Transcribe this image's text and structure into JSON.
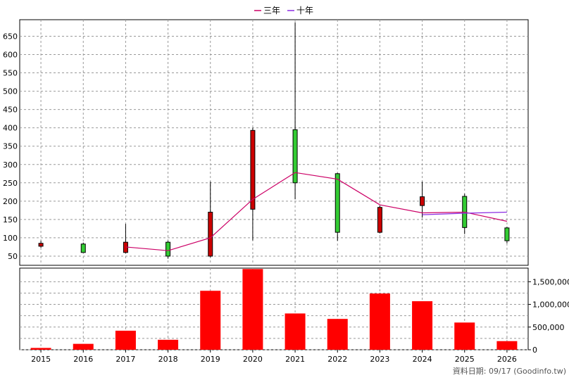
{
  "footer": {
    "source_text": "資料日期: 09/17  (Goodinfo.tw)"
  },
  "chart_data": {
    "type": "candlestick-with-bar",
    "legend": [
      {
        "label": "三年",
        "color": "#cc0066"
      },
      {
        "label": "十年",
        "color": "#8a2be2"
      }
    ],
    "categories": [
      "2015",
      "2016",
      "2017",
      "2018",
      "2019",
      "2020",
      "2021",
      "2022",
      "2023",
      "2024",
      "2025",
      "2026"
    ],
    "price": {
      "ylim": [
        25,
        695
      ],
      "yticks": [
        50,
        100,
        150,
        200,
        250,
        300,
        350,
        400,
        450,
        500,
        550,
        600,
        650
      ],
      "candles": [
        {
          "year": "2015",
          "open": 77,
          "high": 92,
          "low": 73,
          "close": 85,
          "color": "#cc0000"
        },
        {
          "year": "2016",
          "open": 83,
          "high": 87,
          "low": 62,
          "close": 60,
          "color": "#33cc33"
        },
        {
          "year": "2017",
          "open": 60,
          "high": 138,
          "low": 58,
          "close": 88,
          "color": "#cc0000"
        },
        {
          "year": "2018",
          "open": 88,
          "high": 92,
          "low": 43,
          "close": 50,
          "color": "#33cc33"
        },
        {
          "year": "2019",
          "open": 50,
          "high": 253,
          "low": 47,
          "close": 170,
          "color": "#cc0000"
        },
        {
          "year": "2020",
          "open": 178,
          "high": 400,
          "low": 93,
          "close": 393,
          "color": "#cc0000"
        },
        {
          "year": "2021",
          "open": 395,
          "high": 688,
          "low": 205,
          "close": 250,
          "color": "#33cc33"
        },
        {
          "year": "2022",
          "open": 275,
          "high": 277,
          "low": 92,
          "close": 115,
          "color": "#33cc33"
        },
        {
          "year": "2023",
          "open": 115,
          "high": 188,
          "low": 112,
          "close": 183,
          "color": "#cc0000"
        },
        {
          "year": "2024",
          "open": 188,
          "high": 253,
          "low": 155,
          "close": 212,
          "color": "#cc0000"
        },
        {
          "year": "2025",
          "open": 213,
          "high": 220,
          "low": 110,
          "close": 128,
          "color": "#33cc33"
        },
        {
          "year": "2026",
          "open": 127,
          "high": 130,
          "low": 85,
          "close": 92,
          "color": "#33cc33"
        }
      ],
      "series": [
        {
          "name": "三年",
          "color": "#cc0066",
          "points": [
            [
              "2017",
              75
            ],
            [
              "2018",
              65
            ],
            [
              "2019",
              100
            ],
            [
              "2020",
              205
            ],
            [
              "2021",
              278
            ],
            [
              "2022",
              260
            ],
            [
              "2023",
              190
            ],
            [
              "2024",
              168
            ],
            [
              "2025",
              170
            ],
            [
              "2026",
              145
            ]
          ]
        },
        {
          "name": "十年",
          "color": "#8a2be2",
          "points": [
            [
              "2024",
              163
            ],
            [
              "2025",
              167
            ],
            [
              "2026",
              170
            ]
          ]
        }
      ]
    },
    "volume": {
      "ylim": [
        0,
        1800000
      ],
      "yticks": [
        0,
        500000,
        1000000,
        1500000
      ],
      "ytick_labels": [
        "0",
        "500,000",
        "1,000,000",
        "1,500,000"
      ],
      "values": [
        40000,
        130000,
        420000,
        220000,
        1300000,
        1780000,
        800000,
        680000,
        1240000,
        1070000,
        600000,
        190000
      ],
      "color": "#ff0000"
    },
    "grid": true
  }
}
